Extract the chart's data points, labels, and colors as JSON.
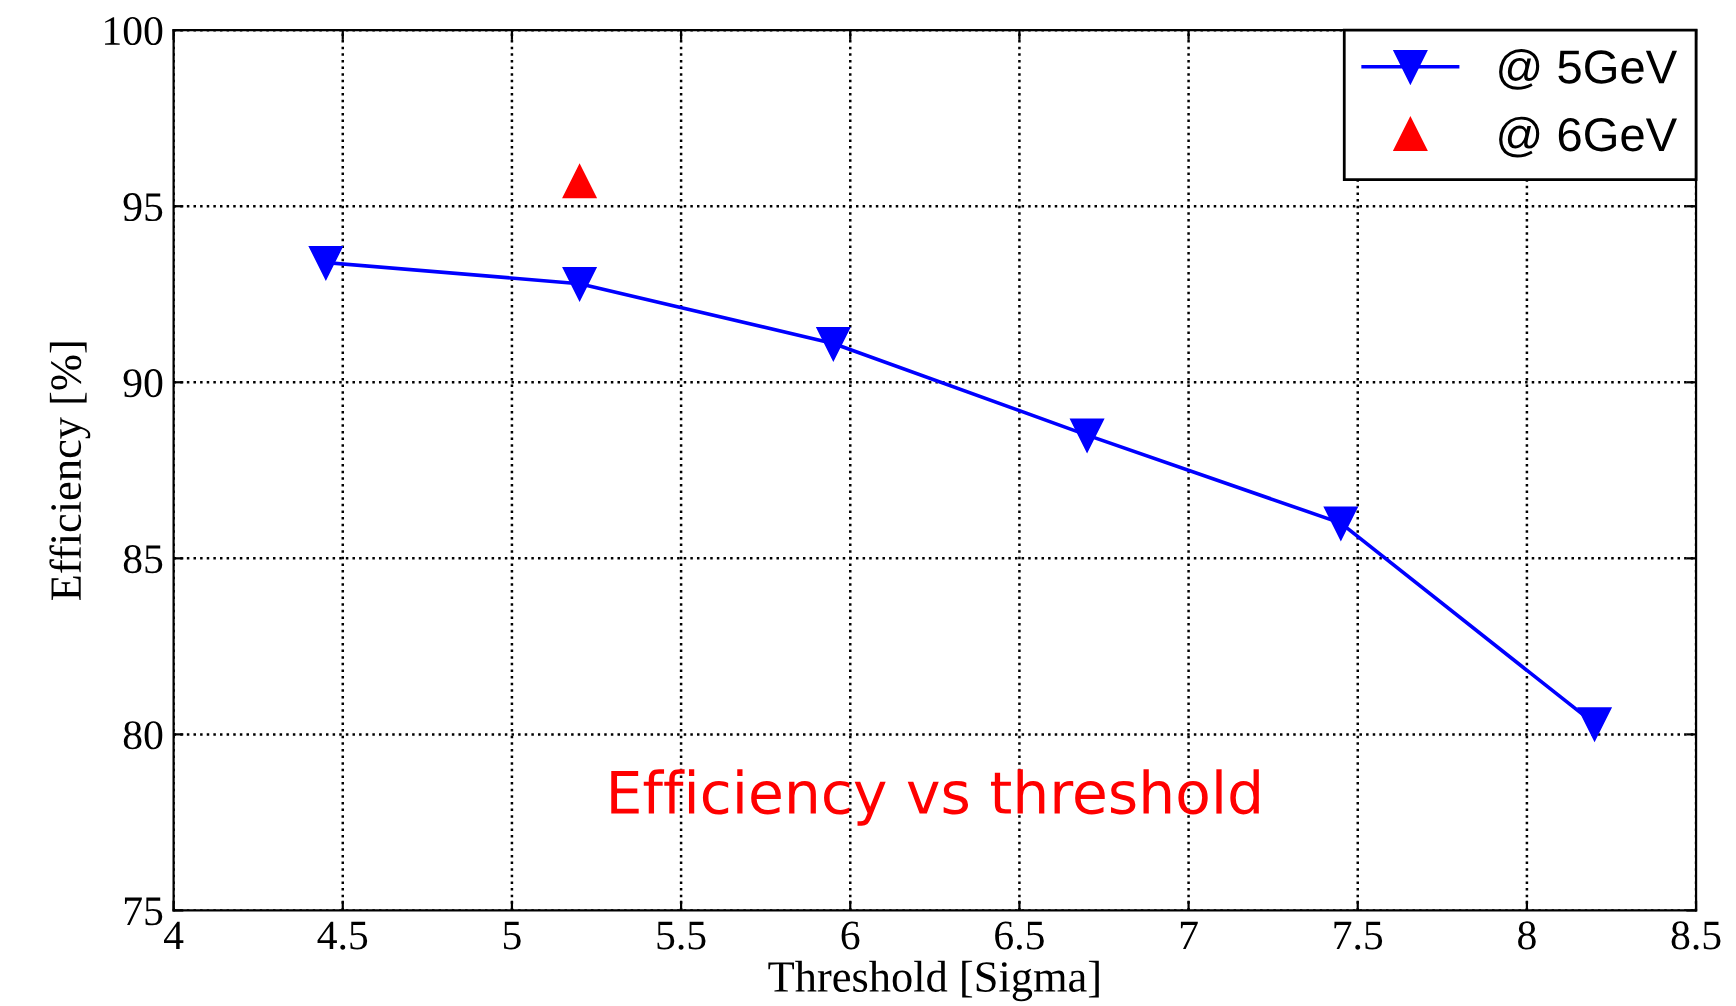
{
  "chart_data": {
    "type": "line",
    "xlabel": "Threshold [Sigma]",
    "ylabel": "Efficiency [%]",
    "xlim": [
      4,
      8.5
    ],
    "xticks": [
      4,
      4.5,
      5,
      5.5,
      6,
      6.5,
      7,
      7.5,
      8,
      8.5
    ],
    "ylim": [
      75,
      100
    ],
    "yticks": [
      75,
      80,
      85,
      90,
      95,
      100
    ],
    "grid": true,
    "legend": "top right",
    "annotations": [
      "Efficiency vs threshold"
    ],
    "series": [
      {
        "name": "@ 5GeV",
        "color": "#0000ff",
        "marker": "triangle_down",
        "x": [
          4.45,
          5.2,
          5.95,
          6.7,
          7.45,
          8.2
        ],
        "values": [
          93.4,
          92.8,
          91.1,
          88.5,
          86.0,
          80.3
        ]
      },
      {
        "name": "@ 6GeV",
        "color": "#ff0000",
        "type": "scatter",
        "marker": "triangle",
        "x": [
          5.2
        ],
        "values": [
          95.7
        ]
      }
    ]
  }
}
